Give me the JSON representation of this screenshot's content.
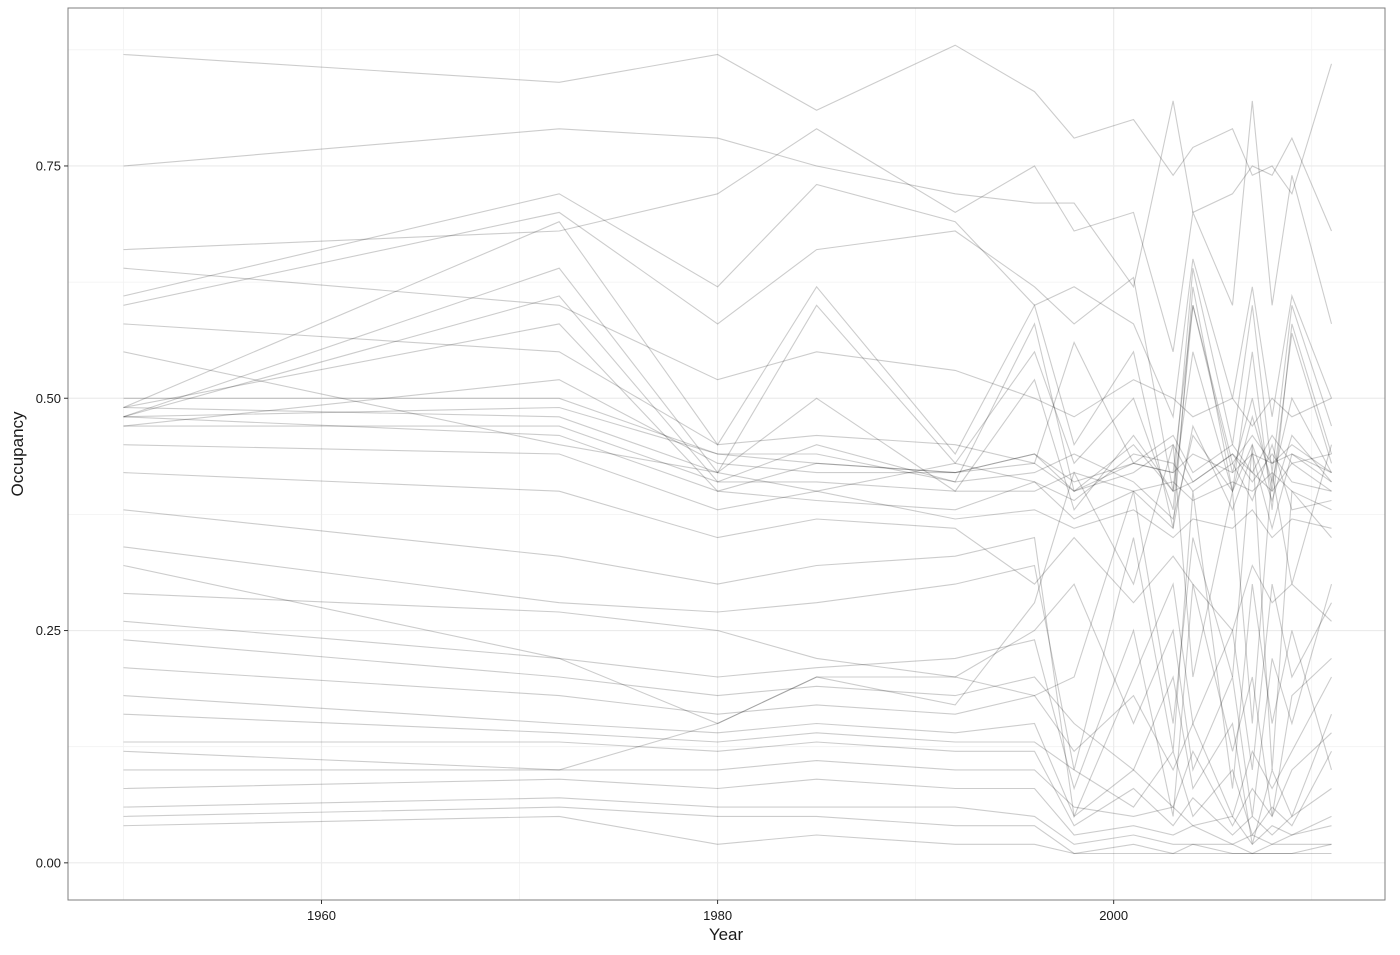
{
  "chart_data": {
    "type": "line",
    "title": "",
    "xlabel": "Year",
    "ylabel": "Occupancy",
    "xlim": [
      1947.2,
      2013.7
    ],
    "ylim": [
      -0.04,
      0.92
    ],
    "x_ticks": [
      1960,
      1980,
      2000
    ],
    "x_tick_labels": [
      "1960",
      "1980",
      "2000"
    ],
    "y_ticks": [
      0,
      0.25,
      0.5,
      0.75
    ],
    "y_tick_labels": [
      "0.00",
      "0.25",
      "0.50",
      "0.75"
    ],
    "grid": true,
    "line_color": "#000000",
    "line_alpha": 0.1,
    "x": [
      1950,
      1972,
      1980,
      1985,
      1992,
      1996,
      1998,
      2001,
      2003,
      2004,
      2006,
      2007,
      2008,
      2009,
      2011
    ],
    "series": [
      {
        "values": [
          0.87,
          0.84,
          0.87,
          0.81,
          0.88,
          0.83,
          0.78,
          0.8,
          0.74,
          0.77,
          0.79,
          0.74,
          0.75,
          0.72,
          0.86
        ]
      },
      {
        "values": [
          0.75,
          0.79,
          0.78,
          0.75,
          0.72,
          0.71,
          0.71,
          0.62,
          0.82,
          0.7,
          0.72,
          0.75,
          0.74,
          0.78,
          0.68
        ]
      },
      {
        "values": [
          0.66,
          0.68,
          0.72,
          0.79,
          0.7,
          0.75,
          0.68,
          0.7,
          0.55,
          0.7,
          0.6,
          0.82,
          0.6,
          0.74,
          0.58
        ]
      },
      {
        "values": [
          0.61,
          0.72,
          0.62,
          0.73,
          0.69,
          0.6,
          0.62,
          0.58,
          0.48,
          0.65,
          0.5,
          0.62,
          0.48,
          0.61,
          0.5
        ]
      },
      {
        "values": [
          0.6,
          0.7,
          0.58,
          0.66,
          0.68,
          0.62,
          0.58,
          0.63,
          0.4,
          0.64,
          0.45,
          0.6,
          0.42,
          0.6,
          0.47
        ]
      },
      {
        "values": [
          0.49,
          0.69,
          0.45,
          0.62,
          0.44,
          0.6,
          0.45,
          0.55,
          0.36,
          0.62,
          0.4,
          0.55,
          0.38,
          0.58,
          0.44
        ]
      },
      {
        "values": [
          0.48,
          0.64,
          0.42,
          0.6,
          0.43,
          0.55,
          0.43,
          0.5,
          0.38,
          0.6,
          0.42,
          0.5,
          0.4,
          0.57,
          0.43
        ]
      },
      {
        "values": [
          0.48,
          0.61,
          0.41,
          0.45,
          0.41,
          0.58,
          0.4,
          0.45,
          0.4,
          0.55,
          0.4,
          0.48,
          0.41,
          0.5,
          0.42
        ]
      },
      {
        "values": [
          0.49,
          0.58,
          0.4,
          0.43,
          0.42,
          0.44,
          0.41,
          0.43,
          0.42,
          0.44,
          0.42,
          0.44,
          0.43,
          0.45,
          0.42
        ]
      },
      {
        "values": [
          0.47,
          0.52,
          0.43,
          0.42,
          0.42,
          0.43,
          0.4,
          0.42,
          0.45,
          0.41,
          0.44,
          0.41,
          0.44,
          0.41,
          0.4
        ]
      },
      {
        "values": [
          0.48,
          0.49,
          0.44,
          0.44,
          0.41,
          0.42,
          0.44,
          0.41,
          0.37,
          0.46,
          0.4,
          0.45,
          0.39,
          0.46,
          0.41
        ]
      },
      {
        "values": [
          0.49,
          0.48,
          0.42,
          0.4,
          0.43,
          0.41,
          0.39,
          0.44,
          0.43,
          0.4,
          0.43,
          0.39,
          0.45,
          0.38,
          0.39
        ]
      },
      {
        "values": [
          0.47,
          0.47,
          0.41,
          0.41,
          0.4,
          0.4,
          0.42,
          0.4,
          0.36,
          0.47,
          0.38,
          0.44,
          0.36,
          0.44,
          0.42
        ]
      },
      {
        "values": [
          0.5,
          0.5,
          0.44,
          0.43,
          0.42,
          0.44,
          0.4,
          0.43,
          0.46,
          0.42,
          0.45,
          0.42,
          0.46,
          0.43,
          0.44
        ]
      },
      {
        "values": [
          0.48,
          0.46,
          0.4,
          0.39,
          0.38,
          0.41,
          0.37,
          0.4,
          0.41,
          0.39,
          0.41,
          0.4,
          0.42,
          0.4,
          0.38
        ]
      },
      {
        "values": [
          0.58,
          0.55,
          0.45,
          0.46,
          0.45,
          0.43,
          0.56,
          0.43,
          0.42,
          0.6,
          0.43,
          0.46,
          0.43,
          0.44,
          0.41
        ]
      },
      {
        "values": [
          0.55,
          0.45,
          0.42,
          0.5,
          0.4,
          0.52,
          0.38,
          0.46,
          0.4,
          0.41,
          0.44,
          0.42,
          0.4,
          0.43,
          0.4
        ]
      },
      {
        "values": [
          0.45,
          0.44,
          0.38,
          0.4,
          0.37,
          0.38,
          0.36,
          0.38,
          0.35,
          0.37,
          0.36,
          0.38,
          0.35,
          0.37,
          0.36
        ]
      },
      {
        "values": [
          0.42,
          0.4,
          0.35,
          0.37,
          0.36,
          0.3,
          0.35,
          0.28,
          0.33,
          0.3,
          0.25,
          0.32,
          0.28,
          0.3,
          0.26
        ]
      },
      {
        "values": [
          0.38,
          0.33,
          0.3,
          0.32,
          0.33,
          0.35,
          0.05,
          0.2,
          0.3,
          0.15,
          0.25,
          0.1,
          0.3,
          0.2,
          0.28
        ]
      },
      {
        "values": [
          0.34,
          0.28,
          0.27,
          0.28,
          0.3,
          0.32,
          0.1,
          0.35,
          0.12,
          0.4,
          0.08,
          0.3,
          0.15,
          0.25,
          0.1
        ]
      },
      {
        "values": [
          0.29,
          0.27,
          0.25,
          0.22,
          0.2,
          0.25,
          0.3,
          0.15,
          0.25,
          0.1,
          0.2,
          0.05,
          0.22,
          0.15,
          0.3
        ]
      },
      {
        "values": [
          0.26,
          0.22,
          0.2,
          0.21,
          0.22,
          0.24,
          0.08,
          0.25,
          0.05,
          0.3,
          0.12,
          0.2,
          0.05,
          0.18,
          0.22
        ]
      },
      {
        "values": [
          0.24,
          0.2,
          0.18,
          0.19,
          0.18,
          0.2,
          0.15,
          0.1,
          0.2,
          0.08,
          0.15,
          0.02,
          0.1,
          0.05,
          0.16
        ]
      },
      {
        "values": [
          0.21,
          0.18,
          0.16,
          0.17,
          0.16,
          0.18,
          0.12,
          0.18,
          0.1,
          0.15,
          0.05,
          0.12,
          0.08,
          0.12,
          0.2
        ]
      },
      {
        "values": [
          0.18,
          0.15,
          0.14,
          0.15,
          0.14,
          0.15,
          0.05,
          0.1,
          0.06,
          0.12,
          0.04,
          0.08,
          0.05,
          0.1,
          0.14
        ]
      },
      {
        "values": [
          0.16,
          0.14,
          0.13,
          0.14,
          0.13,
          0.13,
          0.1,
          0.06,
          0.12,
          0.05,
          0.1,
          0.03,
          0.06,
          0.04,
          0.12
        ]
      },
      {
        "values": [
          0.13,
          0.13,
          0.12,
          0.13,
          0.12,
          0.12,
          0.04,
          0.08,
          0.04,
          0.07,
          0.03,
          0.05,
          0.03,
          0.05,
          0.08
        ]
      },
      {
        "values": [
          0.1,
          0.1,
          0.1,
          0.11,
          0.1,
          0.1,
          0.06,
          0.05,
          0.06,
          0.04,
          0.05,
          0.02,
          0.04,
          0.03,
          0.05
        ]
      },
      {
        "values": [
          0.08,
          0.09,
          0.08,
          0.09,
          0.08,
          0.08,
          0.03,
          0.04,
          0.03,
          0.04,
          0.02,
          0.03,
          0.02,
          0.03,
          0.04
        ]
      },
      {
        "values": [
          0.06,
          0.07,
          0.06,
          0.06,
          0.06,
          0.05,
          0.02,
          0.03,
          0.02,
          0.02,
          0.02,
          0.01,
          0.02,
          0.02,
          0.02
        ]
      },
      {
        "values": [
          0.05,
          0.06,
          0.05,
          0.05,
          0.04,
          0.04,
          0.01,
          0.02,
          0.01,
          0.02,
          0.01,
          0.01,
          0.01,
          0.01,
          0.02
        ]
      },
      {
        "values": [
          0.04,
          0.05,
          0.02,
          0.03,
          0.02,
          0.02,
          0.01,
          0.01,
          0.01,
          0.01,
          0.01,
          0.01,
          0.01,
          0.01,
          0.01
        ]
      },
      {
        "values": [
          0.32,
          0.22,
          0.15,
          0.2,
          0.2,
          0.18,
          0.2,
          0.4,
          0.15,
          0.35,
          0.2,
          0.45,
          0.1,
          0.4,
          0.35
        ]
      },
      {
        "values": [
          0.12,
          0.1,
          0.15,
          0.2,
          0.17,
          0.28,
          0.42,
          0.3,
          0.45,
          0.2,
          0.4,
          0.15,
          0.42,
          0.3,
          0.45
        ]
      },
      {
        "values": [
          0.64,
          0.6,
          0.52,
          0.55,
          0.53,
          0.5,
          0.48,
          0.52,
          0.5,
          0.48,
          0.5,
          0.47,
          0.5,
          0.48,
          0.5
        ]
      }
    ]
  }
}
